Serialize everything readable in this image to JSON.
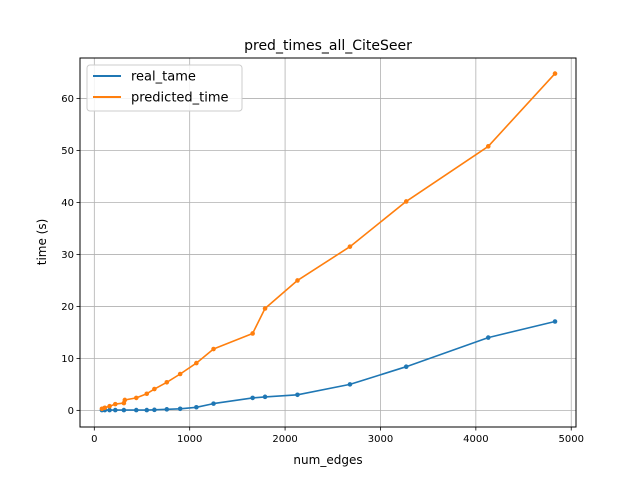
{
  "chart_data": {
    "type": "line",
    "title": "pred_times_all_CiteSeer",
    "xlabel": "num_edges",
    "ylabel": "time (s)",
    "xlim": [
      -150,
      5050
    ],
    "ylim": [
      -3.2,
      67.8
    ],
    "xticks": [
      0,
      1000,
      2000,
      3000,
      4000,
      5000
    ],
    "yticks": [
      0,
      10,
      20,
      30,
      40,
      50,
      60
    ],
    "grid": true,
    "legend_position": "top-left",
    "series": [
      {
        "name": "real_tame",
        "color": "#1f77b4",
        "marker": "circle",
        "x": [
          80,
          110,
          160,
          220,
          310,
          440,
          550,
          630,
          760,
          900,
          1070,
          1250,
          1660,
          1790,
          2130,
          2680,
          3270,
          4130,
          4830
        ],
        "y": [
          0.05,
          0.05,
          0.05,
          0.05,
          0.05,
          0.05,
          0.05,
          0.1,
          0.2,
          0.3,
          0.6,
          1.3,
          2.4,
          2.6,
          3.0,
          5.0,
          8.4,
          14.0,
          17.1
        ]
      },
      {
        "name": "predicted_time",
        "color": "#ff7f0e",
        "marker": "circle",
        "x": [
          80,
          110,
          160,
          220,
          310,
          320,
          440,
          550,
          630,
          760,
          900,
          1070,
          1250,
          1660,
          1790,
          2130,
          2680,
          3270,
          4130,
          4830
        ],
        "y": [
          0.3,
          0.5,
          0.8,
          1.2,
          1.4,
          2.0,
          2.4,
          3.2,
          4.1,
          5.4,
          7.0,
          9.1,
          11.8,
          14.8,
          19.6,
          25.0,
          31.5,
          40.2,
          50.8,
          64.8
        ]
      }
    ]
  }
}
